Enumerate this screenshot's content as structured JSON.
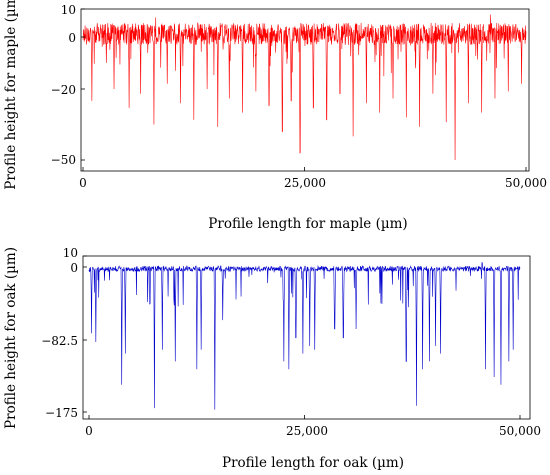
{
  "chart_data": [
    {
      "type": "line",
      "xlabel": "Profile length for maple (µm)",
      "ylabel": "Profile height for maple (µm)",
      "xlim": [
        0,
        50000
      ],
      "ylim": [
        -55,
        10
      ],
      "xticks": [
        0,
        25000,
        50000
      ],
      "xtick_labels": [
        "0",
        "25,000",
        "50,000"
      ],
      "yticks": [
        10,
        0,
        -20,
        -50
      ],
      "ytick_labels": [
        "10",
        "0",
        "−20",
        "−50"
      ],
      "grid": false,
      "series": [
        {
          "color": "#ff0000",
          "baseline": 1,
          "noise_range": [
            -4,
            4
          ],
          "point_count": 1500,
          "dips": [
            [
              1000,
              -25
            ],
            [
              3500,
              -20
            ],
            [
              5200,
              -28
            ],
            [
              6500,
              -22
            ],
            [
              8000,
              -35
            ],
            [
              9500,
              -18
            ],
            [
              11000,
              -26
            ],
            [
              12500,
              -33
            ],
            [
              14000,
              -20
            ],
            [
              15200,
              -36
            ],
            [
              16500,
              -24
            ],
            [
              18000,
              -30
            ],
            [
              19500,
              -21
            ],
            [
              21000,
              -27
            ],
            [
              22500,
              -38
            ],
            [
              23500,
              -25
            ],
            [
              24500,
              -47
            ],
            [
              26000,
              -28
            ],
            [
              27500,
              -33
            ],
            [
              29000,
              -22
            ],
            [
              30500,
              -40
            ],
            [
              32000,
              -26
            ],
            [
              33500,
              -30
            ],
            [
              35000,
              -24
            ],
            [
              36500,
              -32
            ],
            [
              38000,
              -36
            ],
            [
              39500,
              -22
            ],
            [
              41000,
              -34
            ],
            [
              42000,
              -50
            ],
            [
              43500,
              -26
            ],
            [
              45000,
              -30
            ],
            [
              46500,
              -24
            ],
            [
              48000,
              -21
            ],
            [
              49500,
              -18
            ]
          ],
          "peaks": [
            [
              8200,
              7
            ],
            [
              46000,
              8
            ]
          ]
        }
      ]
    },
    {
      "type": "line",
      "xlabel": "Profile length for oak (µm)",
      "ylabel": "Profile height for oak (µm)",
      "xlim": [
        0,
        50000
      ],
      "ylim": [
        -180,
        10
      ],
      "xticks": [
        0,
        25000,
        50000
      ],
      "xtick_labels": [
        "0",
        "25,000",
        "50,000"
      ],
      "yticks": [
        10,
        0,
        -82.5,
        -175
      ],
      "ytick_labels": [
        "10",
        "0",
        "−82.5",
        "−175"
      ],
      "grid": false,
      "series": [
        {
          "color": "#0000cc",
          "baseline": -2,
          "noise_range": [
            -3,
            3
          ],
          "point_count": 1200,
          "dips": [
            [
              300,
              -75
            ],
            [
              800,
              -85
            ],
            [
              3800,
              -140
            ],
            [
              4200,
              -100
            ],
            [
              7600,
              -170
            ],
            [
              8500,
              -95
            ],
            [
              10000,
              -110
            ],
            [
              12500,
              -120
            ],
            [
              13000,
              -95
            ],
            [
              14600,
              -172
            ],
            [
              15500,
              -60
            ],
            [
              22600,
              -110
            ],
            [
              23200,
              -120
            ],
            [
              24000,
              -80
            ],
            [
              24800,
              -100
            ],
            [
              25600,
              -90
            ],
            [
              26200,
              -95
            ],
            [
              28500,
              -70
            ],
            [
              29500,
              -80
            ],
            [
              31000,
              -70
            ],
            [
              36800,
              -110
            ],
            [
              38000,
              -167
            ],
            [
              38700,
              -120
            ],
            [
              39500,
              -110
            ],
            [
              40200,
              -90
            ],
            [
              40800,
              -100
            ],
            [
              46000,
              -120
            ],
            [
              47000,
              -130
            ],
            [
              47800,
              -140
            ],
            [
              48700,
              -110
            ],
            [
              49200,
              -95
            ]
          ],
          "peaks": [
            [
              45600,
              4
            ]
          ]
        }
      ]
    }
  ]
}
